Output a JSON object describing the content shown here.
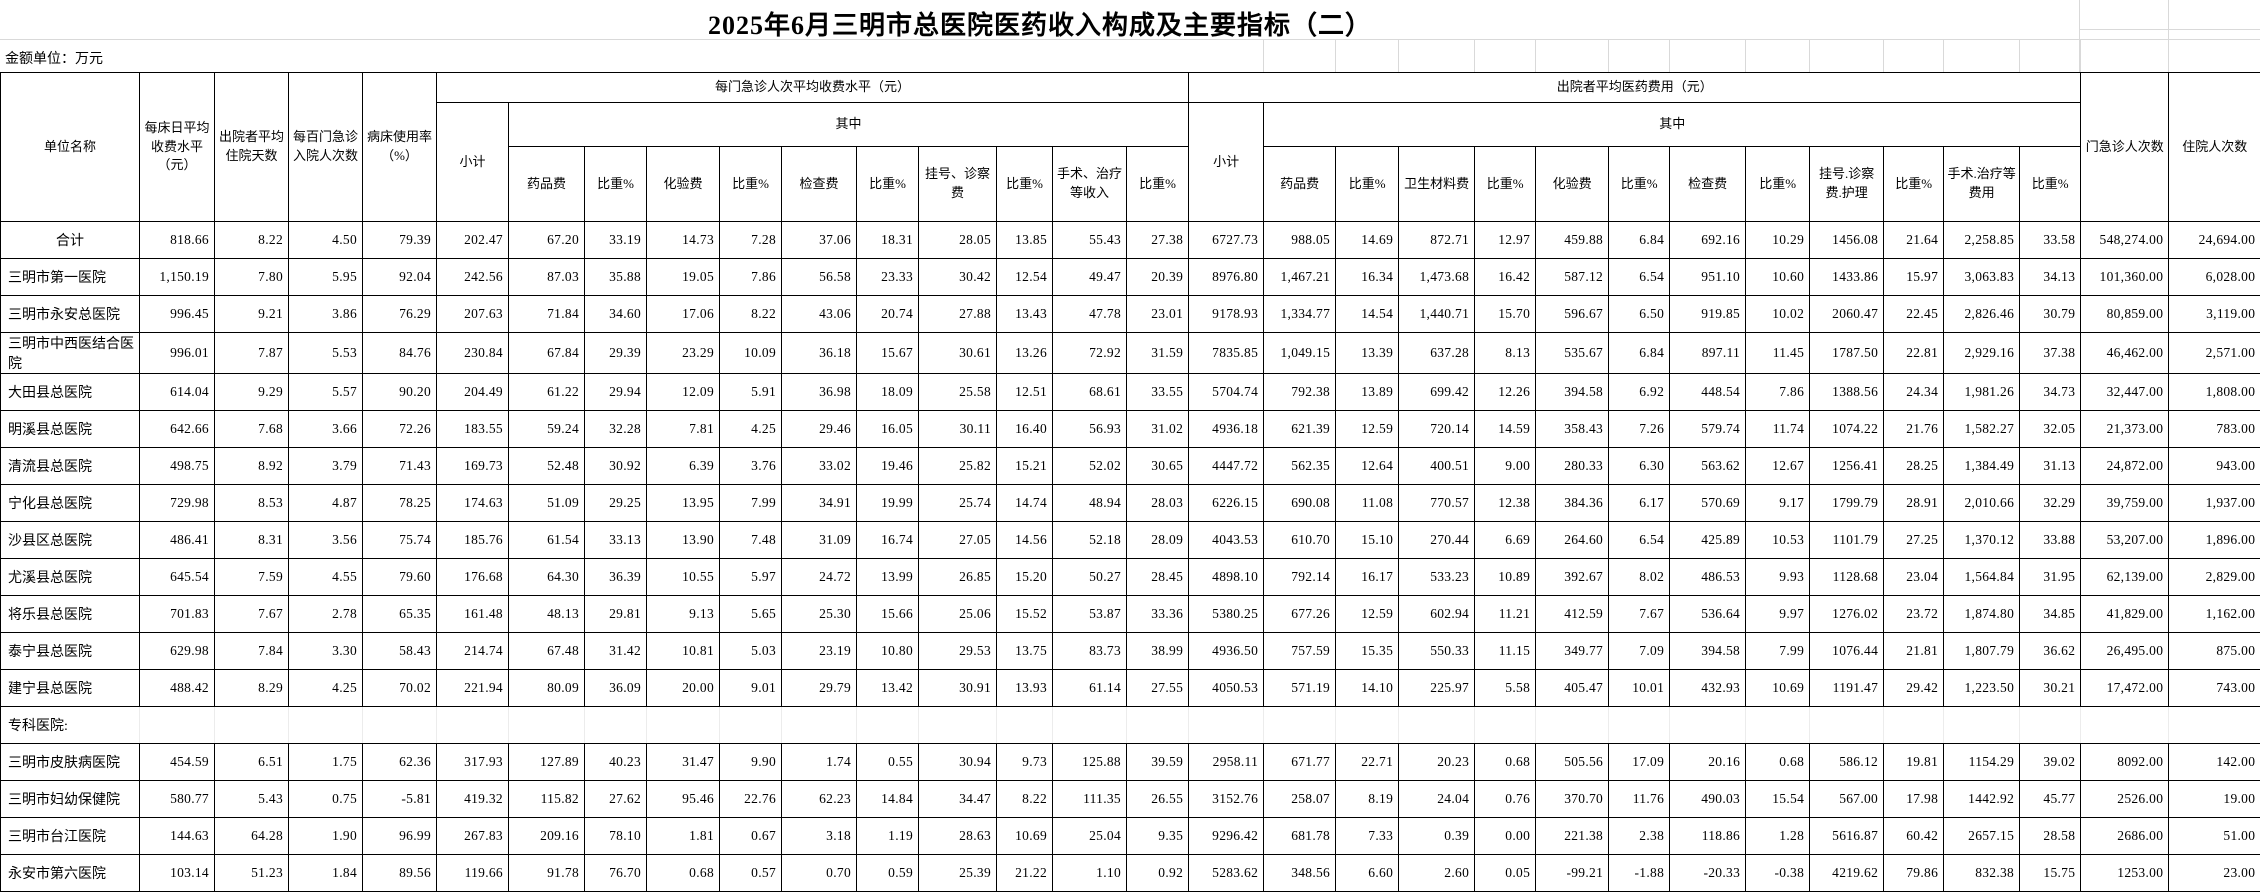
{
  "title": "2025年6月三明市总医院医药收入构成及主要指标（二）",
  "unit_note": "金额单位：万元",
  "colors": {
    "border": "#000000",
    "grid_hint": "#d9d9d9",
    "text": "#000000",
    "background": "#ffffff"
  },
  "header": {
    "unit_name": "单位名称",
    "col_bed_day": "每床日平均收费水平（元）",
    "col_avg_days": "出院者平均住院天数",
    "col_per100": "每百门急诊入院人次数",
    "col_bed_rate": "病床使用率（%）",
    "group1": {
      "title": "每门急诊人次平均收费水平（元）",
      "subtotal": "小计",
      "among": "其中",
      "cols": [
        "药品费",
        "比重%",
        "化验费",
        "比重%",
        "检查费",
        "比重%",
        "挂号、诊察费",
        "比重%",
        "手术、治疗等收入",
        "比重%"
      ]
    },
    "group2": {
      "title": "出院者平均医药费用（元）",
      "subtotal": "小计",
      "among": "其中",
      "cols": [
        "药品费",
        "比重%",
        "卫生材料费",
        "比重%",
        "化验费",
        "比重%",
        "检查费",
        "比重%",
        "挂号.诊察费.护理",
        "比重%",
        "手术.治疗等费用",
        "比重%"
      ]
    },
    "col_outpatient": "门急诊人次数",
    "col_inpatient": "住院人次数"
  },
  "rows": [
    {
      "name": "合计",
      "align": "center",
      "section": false,
      "values": [
        "818.66",
        "8.22",
        "4.50",
        "79.39",
        "202.47",
        "67.20",
        "33.19",
        "14.73",
        "7.28",
        "37.06",
        "18.31",
        "28.05",
        "13.85",
        "55.43",
        "27.38",
        "6727.73",
        "988.05",
        "14.69",
        "872.71",
        "12.97",
        "459.88",
        "6.84",
        "692.16",
        "10.29",
        "1456.08",
        "21.64",
        "2,258.85",
        "33.58",
        "548,274.00",
        "24,694.00"
      ]
    },
    {
      "name": "三明市第一医院",
      "align": "left",
      "section": false,
      "values": [
        "1,150.19",
        "7.80",
        "5.95",
        "92.04",
        "242.56",
        "87.03",
        "35.88",
        "19.05",
        "7.86",
        "56.58",
        "23.33",
        "30.42",
        "12.54",
        "49.47",
        "20.39",
        "8976.80",
        "1,467.21",
        "16.34",
        "1,473.68",
        "16.42",
        "587.12",
        "6.54",
        "951.10",
        "10.60",
        "1433.86",
        "15.97",
        "3,063.83",
        "34.13",
        "101,360.00",
        "6,028.00"
      ]
    },
    {
      "name": "三明市永安总医院",
      "align": "left",
      "section": false,
      "values": [
        "996.45",
        "9.21",
        "3.86",
        "76.29",
        "207.63",
        "71.84",
        "34.60",
        "17.06",
        "8.22",
        "43.06",
        "20.74",
        "27.88",
        "13.43",
        "47.78",
        "23.01",
        "9178.93",
        "1,334.77",
        "14.54",
        "1,440.71",
        "15.70",
        "596.67",
        "6.50",
        "919.85",
        "10.02",
        "2060.47",
        "22.45",
        "2,826.46",
        "30.79",
        "80,859.00",
        "3,119.00"
      ]
    },
    {
      "name": "三明市中西医结合医院",
      "align": "left",
      "section": false,
      "values": [
        "996.01",
        "7.87",
        "5.53",
        "84.76",
        "230.84",
        "67.84",
        "29.39",
        "23.29",
        "10.09",
        "36.18",
        "15.67",
        "30.61",
        "13.26",
        "72.92",
        "31.59",
        "7835.85",
        "1,049.15",
        "13.39",
        "637.28",
        "8.13",
        "535.67",
        "6.84",
        "897.11",
        "11.45",
        "1787.50",
        "22.81",
        "2,929.16",
        "37.38",
        "46,462.00",
        "2,571.00"
      ]
    },
    {
      "name": "大田县总医院",
      "align": "left",
      "section": false,
      "values": [
        "614.04",
        "9.29",
        "5.57",
        "90.20",
        "204.49",
        "61.22",
        "29.94",
        "12.09",
        "5.91",
        "36.98",
        "18.09",
        "25.58",
        "12.51",
        "68.61",
        "33.55",
        "5704.74",
        "792.38",
        "13.89",
        "699.42",
        "12.26",
        "394.58",
        "6.92",
        "448.54",
        "7.86",
        "1388.56",
        "24.34",
        "1,981.26",
        "34.73",
        "32,447.00",
        "1,808.00"
      ]
    },
    {
      "name": "明溪县总医院",
      "align": "left",
      "section": false,
      "values": [
        "642.66",
        "7.68",
        "3.66",
        "72.26",
        "183.55",
        "59.24",
        "32.28",
        "7.81",
        "4.25",
        "29.46",
        "16.05",
        "30.11",
        "16.40",
        "56.93",
        "31.02",
        "4936.18",
        "621.39",
        "12.59",
        "720.14",
        "14.59",
        "358.43",
        "7.26",
        "579.74",
        "11.74",
        "1074.22",
        "21.76",
        "1,582.27",
        "32.05",
        "21,373.00",
        "783.00"
      ]
    },
    {
      "name": "清流县总医院",
      "align": "left",
      "section": false,
      "values": [
        "498.75",
        "8.92",
        "3.79",
        "71.43",
        "169.73",
        "52.48",
        "30.92",
        "6.39",
        "3.76",
        "33.02",
        "19.46",
        "25.82",
        "15.21",
        "52.02",
        "30.65",
        "4447.72",
        "562.35",
        "12.64",
        "400.51",
        "9.00",
        "280.33",
        "6.30",
        "563.62",
        "12.67",
        "1256.41",
        "28.25",
        "1,384.49",
        "31.13",
        "24,872.00",
        "943.00"
      ]
    },
    {
      "name": "宁化县总医院",
      "align": "left",
      "section": false,
      "values": [
        "729.98",
        "8.53",
        "4.87",
        "78.25",
        "174.63",
        "51.09",
        "29.25",
        "13.95",
        "7.99",
        "34.91",
        "19.99",
        "25.74",
        "14.74",
        "48.94",
        "28.03",
        "6226.15",
        "690.08",
        "11.08",
        "770.57",
        "12.38",
        "384.36",
        "6.17",
        "570.69",
        "9.17",
        "1799.79",
        "28.91",
        "2,010.66",
        "32.29",
        "39,759.00",
        "1,937.00"
      ]
    },
    {
      "name": "沙县区总医院",
      "align": "left",
      "section": false,
      "values": [
        "486.41",
        "8.31",
        "3.56",
        "75.74",
        "185.76",
        "61.54",
        "33.13",
        "13.90",
        "7.48",
        "31.09",
        "16.74",
        "27.05",
        "14.56",
        "52.18",
        "28.09",
        "4043.53",
        "610.70",
        "15.10",
        "270.44",
        "6.69",
        "264.60",
        "6.54",
        "425.89",
        "10.53",
        "1101.79",
        "27.25",
        "1,370.12",
        "33.88",
        "53,207.00",
        "1,896.00"
      ]
    },
    {
      "name": "尤溪县总医院",
      "align": "left",
      "section": false,
      "values": [
        "645.54",
        "7.59",
        "4.55",
        "79.60",
        "176.68",
        "64.30",
        "36.39",
        "10.55",
        "5.97",
        "24.72",
        "13.99",
        "26.85",
        "15.20",
        "50.27",
        "28.45",
        "4898.10",
        "792.14",
        "16.17",
        "533.23",
        "10.89",
        "392.67",
        "8.02",
        "486.53",
        "9.93",
        "1128.68",
        "23.04",
        "1,564.84",
        "31.95",
        "62,139.00",
        "2,829.00"
      ]
    },
    {
      "name": "将乐县总医院",
      "align": "left",
      "section": false,
      "values": [
        "701.83",
        "7.67",
        "2.78",
        "65.35",
        "161.48",
        "48.13",
        "29.81",
        "9.13",
        "5.65",
        "25.30",
        "15.66",
        "25.06",
        "15.52",
        "53.87",
        "33.36",
        "5380.25",
        "677.26",
        "12.59",
        "602.94",
        "11.21",
        "412.59",
        "7.67",
        "536.64",
        "9.97",
        "1276.02",
        "23.72",
        "1,874.80",
        "34.85",
        "41,829.00",
        "1,162.00"
      ]
    },
    {
      "name": "泰宁县总医院",
      "align": "left",
      "section": false,
      "values": [
        "629.98",
        "7.84",
        "3.30",
        "58.43",
        "214.74",
        "67.48",
        "31.42",
        "10.81",
        "5.03",
        "23.19",
        "10.80",
        "29.53",
        "13.75",
        "83.73",
        "38.99",
        "4936.50",
        "757.59",
        "15.35",
        "550.33",
        "11.15",
        "349.77",
        "7.09",
        "394.58",
        "7.99",
        "1076.44",
        "21.81",
        "1,807.79",
        "36.62",
        "26,495.00",
        "875.00"
      ]
    },
    {
      "name": "建宁县总医院",
      "align": "left",
      "section": false,
      "values": [
        "488.42",
        "8.29",
        "4.25",
        "70.02",
        "221.94",
        "80.09",
        "36.09",
        "20.00",
        "9.01",
        "29.79",
        "13.42",
        "30.91",
        "13.93",
        "61.14",
        "27.55",
        "4050.53",
        "571.19",
        "14.10",
        "225.97",
        "5.58",
        "405.47",
        "10.01",
        "432.93",
        "10.69",
        "1191.47",
        "29.42",
        "1,223.50",
        "30.21",
        "17,472.00",
        "743.00"
      ]
    },
    {
      "name": "专科医院:",
      "align": "left",
      "section": true,
      "values": []
    },
    {
      "name": "三明市皮肤病医院",
      "align": "left",
      "section": false,
      "values": [
        "454.59",
        "6.51",
        "1.75",
        "62.36",
        "317.93",
        "127.89",
        "40.23",
        "31.47",
        "9.90",
        "1.74",
        "0.55",
        "30.94",
        "9.73",
        "125.88",
        "39.59",
        "2958.11",
        "671.77",
        "22.71",
        "20.23",
        "0.68",
        "505.56",
        "17.09",
        "20.16",
        "0.68",
        "586.12",
        "19.81",
        "1154.29",
        "39.02",
        "8092.00",
        "142.00"
      ]
    },
    {
      "name": "三明市妇幼保健院",
      "align": "left",
      "section": false,
      "values": [
        "580.77",
        "5.43",
        "0.75",
        "-5.81",
        "419.32",
        "115.82",
        "27.62",
        "95.46",
        "22.76",
        "62.23",
        "14.84",
        "34.47",
        "8.22",
        "111.35",
        "26.55",
        "3152.76",
        "258.07",
        "8.19",
        "24.04",
        "0.76",
        "370.70",
        "11.76",
        "490.03",
        "15.54",
        "567.00",
        "17.98",
        "1442.92",
        "45.77",
        "2526.00",
        "19.00"
      ]
    },
    {
      "name": "三明市台江医院",
      "align": "left",
      "section": false,
      "values": [
        "144.63",
        "64.28",
        "1.90",
        "96.99",
        "267.83",
        "209.16",
        "78.10",
        "1.81",
        "0.67",
        "3.18",
        "1.19",
        "28.63",
        "10.69",
        "25.04",
        "9.35",
        "9296.42",
        "681.78",
        "7.33",
        "0.39",
        "0.00",
        "221.38",
        "2.38",
        "118.86",
        "1.28",
        "5616.87",
        "60.42",
        "2657.15",
        "28.58",
        "2686.00",
        "51.00"
      ]
    },
    {
      "name": "永安市第六医院",
      "align": "left",
      "section": false,
      "values": [
        "103.14",
        "51.23",
        "1.84",
        "89.56",
        "119.66",
        "91.78",
        "76.70",
        "0.68",
        "0.57",
        "0.70",
        "0.59",
        "25.39",
        "21.22",
        "1.10",
        "0.92",
        "5283.62",
        "348.56",
        "6.60",
        "2.60",
        "0.05",
        "-99.21",
        "-1.88",
        "-20.33",
        "-0.38",
        "4219.62",
        "79.86",
        "832.38",
        "15.75",
        "1253.00",
        "23.00"
      ]
    }
  ]
}
